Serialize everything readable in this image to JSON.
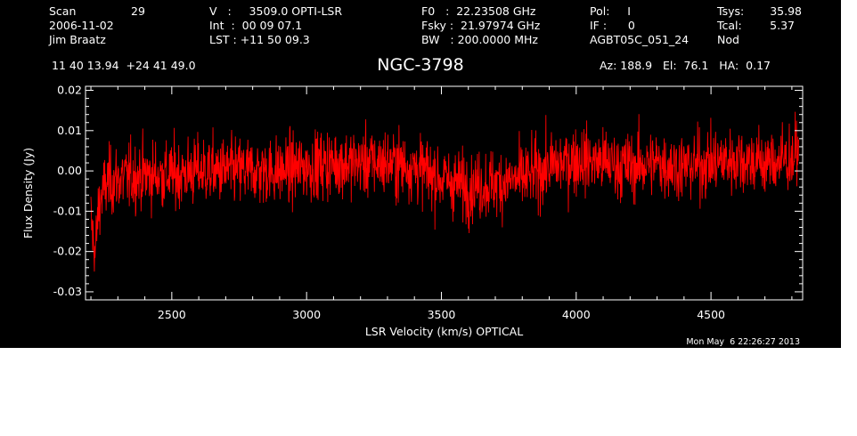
{
  "header": {
    "scan_label": "Scan",
    "scan_value": "29",
    "date": "2006-11-02",
    "observer": "Jim Braatz",
    "v_line": "V   :     3509.0 OPTI-LSR",
    "int_line": "Int  :  00 09 07.1",
    "lst_line": "LST : +11 50 09.3",
    "f0_line": "F0   :  22.23508 GHz",
    "fsky_line": "Fsky :  21.97974 GHz",
    "bw_line": "BW   : 200.0000 MHz",
    "pol_line": "Pol:     I",
    "if_line": "IF :      0",
    "project": "AGBT05C_051_24",
    "tsys_label": "Tsys:",
    "tsys_value": "35.98",
    "tcal_label": "Tcal:",
    "tcal_value": "5.37",
    "nod": "Nod",
    "coordinates": "11 40 13.94  +24 41 49.0",
    "object_name": "NGC-3798",
    "pointing": "Az: 188.9   El:  76.1   HA:  0.17",
    "timestamp": "Mon May  6 22:26:27 2013"
  },
  "chart_data": {
    "type": "line",
    "xlabel": "LSR Velocity (km/s) OPTICAL",
    "ylabel": "Flux Density (Jy)",
    "xlim": [
      2180,
      4840
    ],
    "ylim": [
      -0.032,
      0.021
    ],
    "xticks": [
      2500,
      3000,
      3500,
      4000,
      4500
    ],
    "xtick_labels": [
      "2500",
      "3000",
      "3500",
      "4000",
      "4500"
    ],
    "yticks": [
      0.02,
      0.01,
      0.0,
      -0.01,
      -0.02,
      -0.03
    ],
    "ytick_labels": [
      "0.02",
      "0.01",
      "0.00",
      "-0.01",
      "-0.02",
      "-0.03"
    ],
    "series": [
      {
        "color": "#ff0000",
        "x_range": [
          2200,
          4825
        ],
        "baseline_profile": {
          "x": [
            2200,
            2215,
            2230,
            2260,
            2300,
            2400,
            2500,
            2600,
            2700,
            2800,
            2900,
            3000,
            3100,
            3200,
            3300,
            3400,
            3500,
            3600,
            3700,
            3800,
            3900,
            4000,
            4100,
            4200,
            4300,
            4400,
            4500,
            4600,
            4700,
            4800,
            4825
          ],
          "y": [
            -0.012,
            -0.021,
            -0.008,
            -0.003,
            -0.002,
            -0.001,
            -0.001,
            0.0,
            0.0,
            0.0,
            0.0,
            0.001,
            0.002,
            0.002,
            0.002,
            0.001,
            -0.002,
            -0.004,
            -0.003,
            -0.002,
            0.001,
            0.003,
            0.002,
            0.001,
            0.002,
            0.001,
            0.002,
            0.003,
            0.002,
            0.003,
            0.005
          ]
        },
        "noise_rms": 0.0042,
        "min_value": -0.025,
        "max_value": 0.0175
      }
    ],
    "grid": false,
    "legend": "none"
  }
}
